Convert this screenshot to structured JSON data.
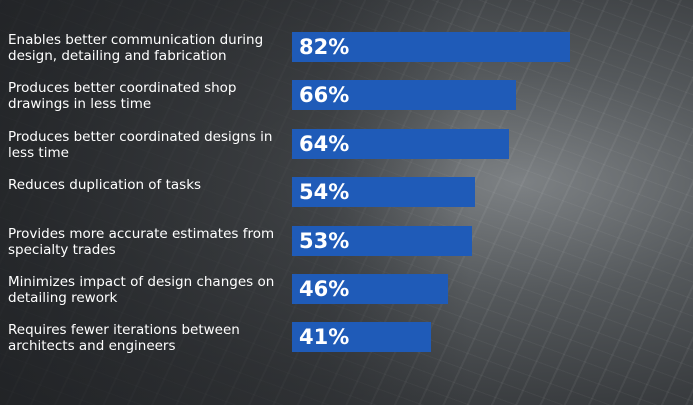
{
  "chart_data": {
    "type": "bar",
    "color": "#1f5bb8",
    "categories": [
      "Enables better communication during design, detailing and fabrication",
      "Produces better coordinated shop drawings in less time",
      "Produces better coordinated designs in less time",
      "Reduces duplication of tasks",
      "Provides more accurate estimates from specialty trades",
      "Minimizes impact of design changes on detailing rework",
      "Requires fewer iterations between architects and engineers"
    ],
    "values": [
      82,
      66,
      64,
      54,
      53,
      46,
      41
    ],
    "value_labels": [
      "82%",
      "66%",
      "64%",
      "54%",
      "53%",
      "46%",
      "41%"
    ]
  }
}
